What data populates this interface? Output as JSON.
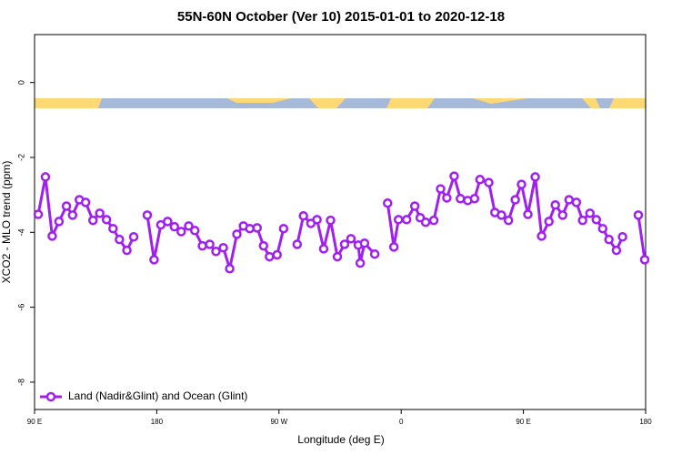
{
  "chart_data": {
    "type": "line",
    "title": "55N-60N October (Ver 10)   2015-01-01 to 2020-12-18",
    "x_label": "Longitude (deg E)",
    "y_label": "XCO2 - MLO trend (ppm)",
    "xlim": [
      90,
      540
    ],
    "xticks": [
      {
        "value": 90,
        "label": "90 E"
      },
      {
        "value": 180,
        "label": "180"
      },
      {
        "value": 270,
        "label": "90 W"
      },
      {
        "value": 360,
        "label": "0"
      },
      {
        "value": 450,
        "label": "90 E"
      },
      {
        "value": 540,
        "label": "180"
      }
    ],
    "ylim": [
      -8.73,
      1.28
    ],
    "yticks": [
      0,
      -2,
      -4,
      -6,
      -8
    ],
    "legend_position": "lower left",
    "x": [
      92.7,
      98,
      103,
      108,
      113.5,
      118,
      123,
      127.6,
      133,
      138,
      143,
      147.8,
      152.5,
      158,
      163,
      null,
      173,
      178,
      183,
      188,
      193,
      198,
      203.5,
      208,
      213.6,
      219,
      223.6,
      229,
      233.7,
      239,
      243.8,
      248.5,
      253.9,
      258.6,
      263,
      268.6,
      273.4,
      null,
      283.4,
      288,
      293.5,
      298,
      302.9,
      308,
      313,
      318.3,
      323,
      328.4,
      329.8,
      333,
      340.5,
      null,
      350,
      354.6,
      358,
      364,
      370,
      374,
      378,
      384,
      389,
      393.6,
      399,
      403.6,
      409,
      414,
      418,
      424.5,
      429,
      433.8,
      439,
      444,
      448.6,
      453.3,
      458.7,
      463.4,
      468.8,
      473.5,
      478.9,
      483.6,
      489,
      493.6,
      499,
      503.7,
      508.4,
      513,
      518.5,
      523,
      null,
      534.6,
      539.3
    ],
    "series": [
      {
        "name": "Land (Nadir&Glint) and Ocean (Glint)",
        "color": "#a020f0",
        "values": [
          -3.52,
          -2.52,
          -4.1,
          -3.71,
          -3.3,
          -3.54,
          -3.13,
          -3.2,
          -3.68,
          -3.49,
          -3.66,
          -3.9,
          -4.19,
          -4.48,
          -4.12,
          null,
          -3.54,
          -4.73,
          -3.8,
          -3.71,
          -3.85,
          -3.98,
          -3.83,
          -3.95,
          -4.36,
          -4.32,
          -4.51,
          -4.41,
          -4.97,
          -4.05,
          -3.83,
          -3.9,
          -3.88,
          -4.36,
          -4.65,
          -4.6,
          -3.9,
          null,
          -4.32,
          -3.56,
          -3.76,
          -3.66,
          -4.44,
          -3.68,
          -4.65,
          -4.32,
          -4.17,
          -4.34,
          -4.82,
          -4.29,
          -4.58,
          null,
          -3.22,
          -4.39,
          -3.66,
          -3.66,
          -3.3,
          -3.61,
          -3.73,
          -3.68,
          -2.84,
          -3.08,
          -2.5,
          -3.1,
          -3.15,
          -3.1,
          -2.59,
          -2.67,
          -3.47,
          -3.54,
          -3.68,
          -3.13,
          -2.72,
          -3.52,
          -2.52,
          -4.1,
          -3.71,
          -3.27,
          -3.54,
          -3.13,
          -3.2,
          -3.68,
          -3.49,
          -3.66,
          -3.9,
          -4.19,
          -4.48,
          -4.12,
          null,
          -3.54,
          -4.73
        ]
      }
    ]
  }
}
